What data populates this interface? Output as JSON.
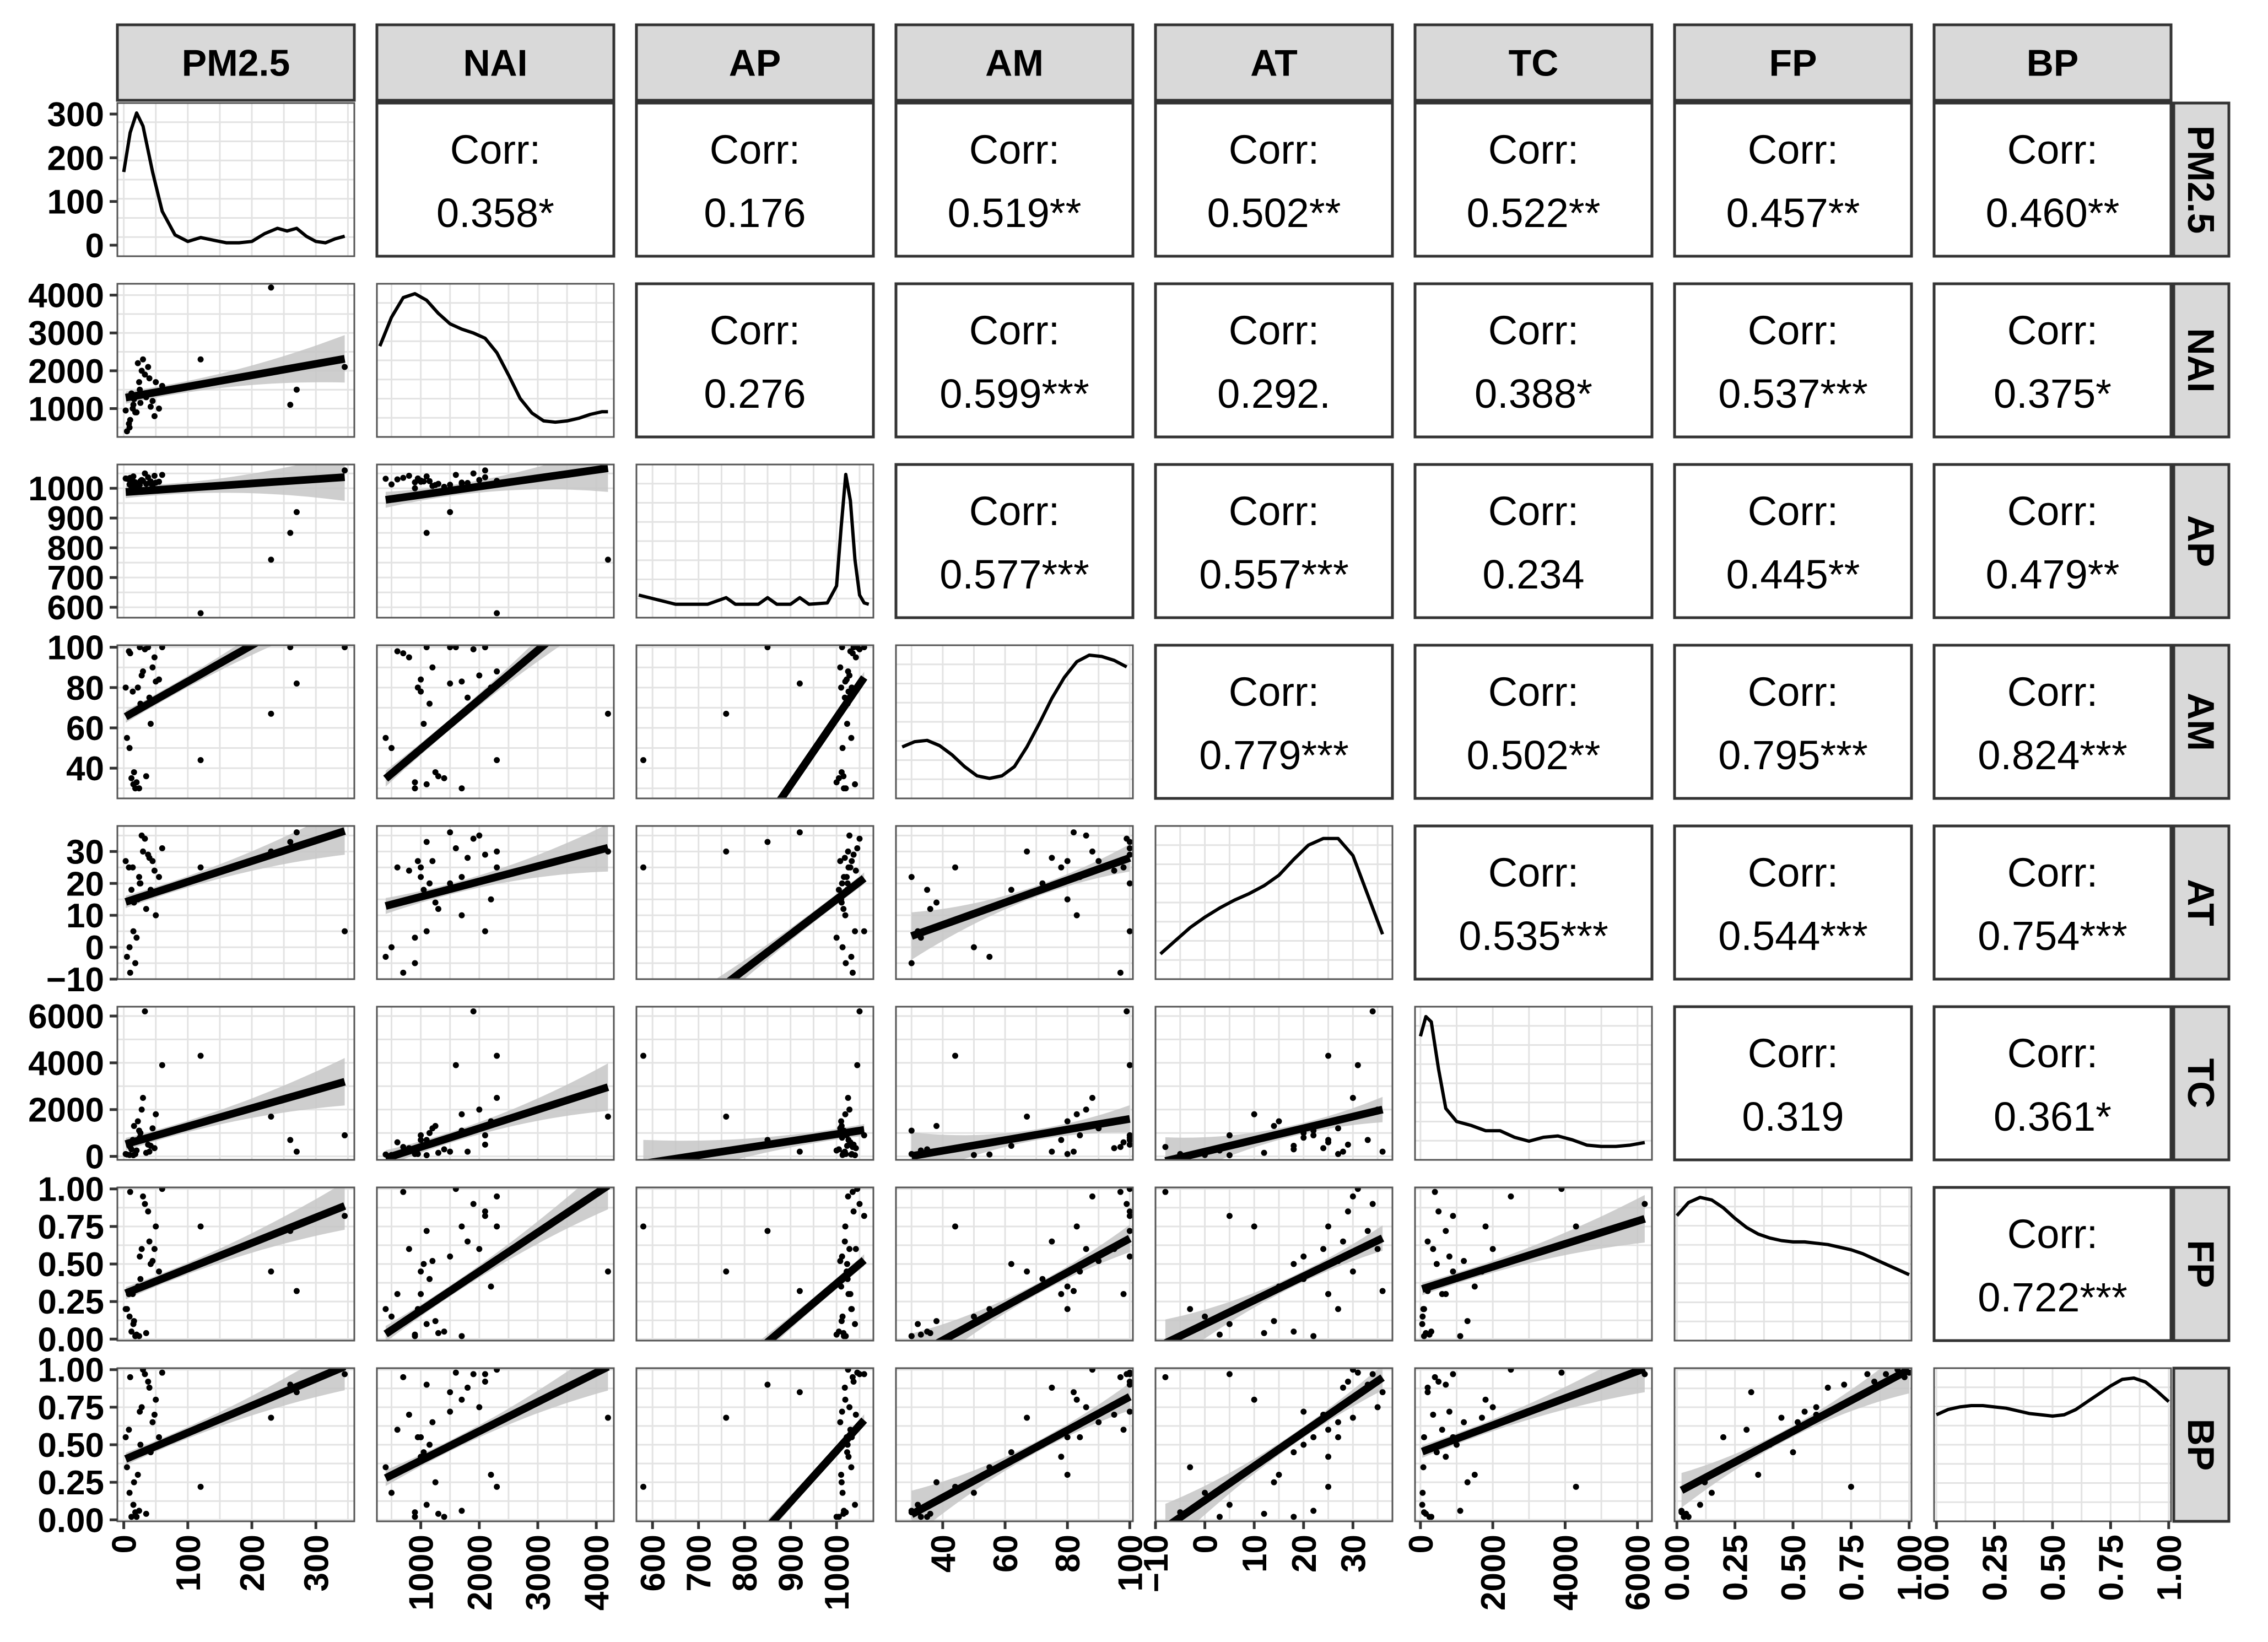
{
  "chart_data": {
    "type": "scatter-matrix",
    "variables": [
      "PM2.5",
      "NAI",
      "AP",
      "AM",
      "AT",
      "TC",
      "FP",
      "BP"
    ],
    "corr_label": "Corr:",
    "correlations": [
      {
        "row": "NAI",
        "col": "PM2.5",
        "text": "0.358*"
      },
      {
        "row": "AP",
        "col": "PM2.5",
        "text": "0.176"
      },
      {
        "row": "AP",
        "col": "NAI",
        "text": "0.276"
      },
      {
        "row": "AM",
        "col": "PM2.5",
        "text": "0.519**"
      },
      {
        "row": "AM",
        "col": "NAI",
        "text": "0.599***"
      },
      {
        "row": "AM",
        "col": "AP",
        "text": "0.577***"
      },
      {
        "row": "AT",
        "col": "PM2.5",
        "text": "0.502**"
      },
      {
        "row": "AT",
        "col": "NAI",
        "text": "0.292."
      },
      {
        "row": "AT",
        "col": "AP",
        "text": "0.557***"
      },
      {
        "row": "AT",
        "col": "AM",
        "text": "0.779***"
      },
      {
        "row": "TC",
        "col": "PM2.5",
        "text": "0.522**"
      },
      {
        "row": "TC",
        "col": "NAI",
        "text": "0.388*"
      },
      {
        "row": "TC",
        "col": "AP",
        "text": "0.234"
      },
      {
        "row": "TC",
        "col": "AM",
        "text": "0.502**"
      },
      {
        "row": "TC",
        "col": "AT",
        "text": "0.535***"
      },
      {
        "row": "FP",
        "col": "PM2.5",
        "text": "0.457**"
      },
      {
        "row": "FP",
        "col": "NAI",
        "text": "0.537***"
      },
      {
        "row": "FP",
        "col": "AP",
        "text": "0.445**"
      },
      {
        "row": "FP",
        "col": "AM",
        "text": "0.795***"
      },
      {
        "row": "FP",
        "col": "AT",
        "text": "0.544***"
      },
      {
        "row": "FP",
        "col": "TC",
        "text": "0.319"
      },
      {
        "row": "BP",
        "col": "PM2.5",
        "text": "0.460**"
      },
      {
        "row": "BP",
        "col": "NAI",
        "text": "0.375*"
      },
      {
        "row": "BP",
        "col": "AP",
        "text": "0.479**"
      },
      {
        "row": "BP",
        "col": "AM",
        "text": "0.824***"
      },
      {
        "row": "BP",
        "col": "AT",
        "text": "0.754***"
      },
      {
        "row": "BP",
        "col": "TC",
        "text": "0.361*"
      },
      {
        "row": "BP",
        "col": "FP",
        "text": "0.722***"
      }
    ],
    "axes": {
      "PM2.5": {
        "lim": [
          -10,
          360
        ],
        "ticks": [
          0,
          100,
          200,
          300
        ],
        "tick_labels": [
          "0",
          "100",
          "200",
          "300"
        ]
      },
      "NAI": {
        "lim": [
          250,
          4300
        ],
        "ticks": [
          1000,
          2000,
          3000,
          4000
        ],
        "tick_labels": [
          "1000",
          "2000",
          "3000",
          "4000"
        ]
      },
      "AP": {
        "lim": [
          565,
          1080
        ],
        "ticks": [
          600,
          700,
          800,
          900,
          1000
        ],
        "tick_labels": [
          "600",
          "700",
          "800",
          "900",
          "1000"
        ]
      },
      "AM": {
        "lim": [
          25,
          101
        ],
        "ticks": [
          40,
          60,
          80,
          100
        ],
        "tick_labels": [
          "40",
          "60",
          "80",
          "100"
        ]
      },
      "AT": {
        "lim": [
          -10,
          38
        ],
        "ticks": [
          -10,
          0,
          10,
          20,
          30
        ],
        "tick_labels": [
          "−10",
          "0",
          "10",
          "20",
          "30"
        ]
      },
      "TC": {
        "lim": [
          -150,
          6400
        ],
        "ticks": [
          0,
          2000,
          4000,
          6000
        ],
        "tick_labels": [
          "0",
          "2000",
          "4000",
          "6000"
        ]
      },
      "FP": {
        "lim": [
          -0.01,
          1.01
        ],
        "ticks": [
          0,
          0.25,
          0.5,
          0.75,
          1
        ],
        "tick_labels": [
          "0.00",
          "0.25",
          "0.50",
          "0.75",
          "1.00"
        ]
      },
      "BP": {
        "lim": [
          -0.01,
          1.01
        ],
        "ticks": [
          0,
          0.25,
          0.5,
          0.75,
          1
        ],
        "tick_labels": [
          "0.00",
          "0.25",
          "0.50",
          "0.75",
          "1.00"
        ]
      }
    },
    "diagonal_density": {
      "PM2.5": {
        "x": [
          0,
          10,
          20,
          30,
          45,
          60,
          80,
          100,
          120,
          140,
          160,
          180,
          200,
          220,
          240,
          255,
          270,
          285,
          300,
          315,
          330,
          345
        ],
        "y": [
          0.55,
          0.85,
          1.0,
          0.9,
          0.55,
          0.25,
          0.07,
          0.02,
          0.05,
          0.03,
          0.01,
          0.01,
          0.02,
          0.08,
          0.12,
          0.1,
          0.12,
          0.06,
          0.02,
          0.01,
          0.04,
          0.06
        ]
      },
      "NAI": {
        "x": [
          300,
          500,
          700,
          900,
          1100,
          1300,
          1500,
          1700,
          1900,
          2100,
          2300,
          2500,
          2700,
          2900,
          3100,
          3300,
          3500,
          3700,
          3900,
          4100,
          4200
        ],
        "y": [
          0.6,
          0.82,
          0.97,
          1.0,
          0.95,
          0.85,
          0.77,
          0.73,
          0.7,
          0.66,
          0.55,
          0.38,
          0.2,
          0.09,
          0.03,
          0.02,
          0.03,
          0.05,
          0.08,
          0.1,
          0.1
        ]
      },
      "AP": {
        "x": [
          570,
          650,
          720,
          760,
          780,
          800,
          830,
          850,
          870,
          900,
          920,
          940,
          980,
          1000,
          1010,
          1020,
          1030,
          1040,
          1050,
          1060,
          1070
        ],
        "y": [
          0.08,
          0.01,
          0.01,
          0.06,
          0.01,
          0.01,
          0.01,
          0.06,
          0.01,
          0.01,
          0.06,
          0.01,
          0.02,
          0.15,
          0.6,
          1.0,
          0.8,
          0.35,
          0.08,
          0.02,
          0.01
        ]
      },
      "AM": {
        "x": [
          27,
          31,
          35,
          39,
          43,
          47,
          51,
          55,
          59,
          63,
          67,
          71,
          75,
          79,
          83,
          87,
          91,
          95,
          99
        ],
        "y": [
          0.3,
          0.34,
          0.35,
          0.31,
          0.24,
          0.15,
          0.08,
          0.06,
          0.08,
          0.15,
          0.3,
          0.48,
          0.67,
          0.83,
          0.95,
          1.0,
          0.99,
          0.96,
          0.91
        ]
      },
      "AT": {
        "x": [
          -9,
          -6,
          -3,
          0,
          3,
          6,
          9,
          12,
          15,
          18,
          21,
          24,
          27,
          30,
          33,
          36
        ],
        "y": [
          0.1,
          0.2,
          0.3,
          0.38,
          0.45,
          0.51,
          0.56,
          0.62,
          0.7,
          0.82,
          0.93,
          0.98,
          0.98,
          0.85,
          0.55,
          0.25
        ]
      },
      "TC": {
        "x": [
          0,
          150,
          300,
          500,
          700,
          1000,
          1400,
          1800,
          2200,
          2600,
          3000,
          3400,
          3800,
          4200,
          4600,
          5000,
          5400,
          5800,
          6200
        ],
        "y": [
          0.85,
          1.0,
          0.96,
          0.6,
          0.3,
          0.2,
          0.17,
          0.13,
          0.13,
          0.08,
          0.05,
          0.08,
          0.09,
          0.06,
          0.02,
          0.01,
          0.01,
          0.02,
          0.04
        ]
      },
      "FP": {
        "x": [
          0,
          0.05,
          0.1,
          0.15,
          0.2,
          0.25,
          0.3,
          0.35,
          0.4,
          0.45,
          0.5,
          0.55,
          0.6,
          0.65,
          0.7,
          0.75,
          0.8,
          0.85,
          0.9,
          0.95,
          1.0
        ],
        "y": [
          0.86,
          0.96,
          1.0,
          0.98,
          0.92,
          0.84,
          0.77,
          0.72,
          0.69,
          0.67,
          0.66,
          0.66,
          0.65,
          0.64,
          0.62,
          0.6,
          0.57,
          0.53,
          0.49,
          0.45,
          0.41
        ]
      },
      "BP": {
        "x": [
          0,
          0.05,
          0.1,
          0.15,
          0.2,
          0.25,
          0.3,
          0.35,
          0.4,
          0.45,
          0.5,
          0.55,
          0.6,
          0.65,
          0.7,
          0.75,
          0.8,
          0.85,
          0.9,
          0.95,
          1.0
        ],
        "y": [
          0.72,
          0.76,
          0.78,
          0.79,
          0.79,
          0.78,
          0.77,
          0.75,
          0.73,
          0.72,
          0.71,
          0.72,
          0.76,
          0.82,
          0.88,
          0.94,
          0.99,
          1.0,
          0.97,
          0.9,
          0.82
        ]
      }
    },
    "observations": {
      "PM2.5": [
        12,
        18,
        25,
        8,
        30,
        40,
        15,
        22,
        55,
        10,
        35,
        28,
        45,
        5,
        60,
        20,
        14,
        50,
        38,
        9,
        26,
        33,
        48,
        16,
        42,
        120,
        230,
        260,
        270,
        345,
        3,
        24
      ],
      "NAI": [
        1400,
        900,
        1500,
        600,
        2300,
        1800,
        1100,
        2200,
        1000,
        700,
        1300,
        2000,
        1200,
        400,
        1600,
        900,
        1000,
        1700,
        2100,
        500,
        1150,
        1900,
        800,
        1250,
        1050,
        2300,
        4200,
        1100,
        1500,
        2100,
        950,
        1700
      ],
      "AP": [
        1005,
        1020,
        1012,
        1030,
        1025,
        1018,
        1040,
        1010,
        1022,
        1035,
        1015,
        1028,
        1008,
        1032,
        1045,
        1000,
        1026,
        1019,
        1037,
        1013,
        1024,
        1050,
        1042,
        1011,
        1023,
        580,
        760,
        850,
        920,
        1060,
        1033,
        1016
      ],
      "AM": [
        35,
        30,
        100,
        98,
        88,
        75,
        32,
        80,
        84,
        97,
        36,
        86,
        90,
        55,
        100,
        33,
        78,
        83,
        100,
        50,
        72,
        99,
        95,
        38,
        62,
        44,
        67,
        100,
        82,
        100,
        80,
        30
      ],
      "AT": [
        18,
        -5,
        20,
        25,
        30,
        28,
        5,
        15,
        22,
        -8,
        12,
        35,
        27,
        -3,
        31,
        3,
        25,
        10,
        29,
        0,
        20,
        34,
        24,
        14,
        18,
        25,
        30,
        33,
        36,
        5,
        27,
        22
      ],
      "TC": [
        300,
        100,
        800,
        600,
        2500,
        200,
        50,
        1500,
        900,
        400,
        150,
        2000,
        1200,
        80,
        3900,
        250,
        700,
        1800,
        500,
        60,
        1000,
        6200,
        350,
        1300,
        450,
        4300,
        1700,
        700,
        200,
        900,
        100,
        1100
      ],
      "FP": [
        0.05,
        0.02,
        0.55,
        0.3,
        0.95,
        0.65,
        0.1,
        0.35,
        0.45,
        0.98,
        0.04,
        0.6,
        0.52,
        0.2,
        1.0,
        0.03,
        0.3,
        0.75,
        0.85,
        0.15,
        0.4,
        0.9,
        0.6,
        0.12,
        0.5,
        0.75,
        0.45,
        0.72,
        0.32,
        0.82,
        0.2,
        0.02
      ],
      "BP": [
        0.02,
        0.05,
        0.72,
        0.6,
        1.0,
        0.88,
        0.1,
        0.3,
        0.55,
        0.95,
        0.04,
        0.75,
        0.65,
        0.35,
        0.98,
        0.02,
        0.42,
        0.8,
        0.92,
        0.18,
        0.5,
        0.97,
        0.7,
        0.25,
        0.45,
        0.22,
        0.68,
        0.9,
        0.85,
        0.97,
        0.55,
        0.06
      ]
    },
    "fits": {
      "NAI|PM2.5": [
        1281,
        3.0
      ],
      "AP|PM2.5": [
        987,
        0.146
      ],
      "AP|NAI": [
        950,
        0.028
      ],
      "AM|PM2.5": [
        65,
        0.18
      ],
      "AM|NAI": [
        25,
        0.0245
      ],
      "AM|AP": [
        -268,
        0.333
      ],
      "AT|PM2.5": [
        14,
        0.065
      ],
      "AT|NAI": [
        11,
        0.0048
      ],
      "AT|AP": [
        -95,
        0.11
      ],
      "AT|AM": [
        -7,
        0.35
      ],
      "TC|PM2.5": [
        500,
        7.8
      ],
      "TC|NAI": [
        -400,
        0.8
      ],
      "TC|AP": [
        -2050,
        3.0
      ],
      "TC|AM": [
        -667,
        22.7
      ],
      "TC|AT": [
        200,
        50
      ],
      "FP|PM2.5": [
        0.3,
        0.0017
      ],
      "FP|NAI": [
        -0.07,
        0.00026
      ],
      "FP|AP": [
        -2.23,
        0.0026
      ],
      "FP|AM": [
        -0.46,
        0.0113
      ],
      "FP|AT": [
        0.1,
        0.0159
      ],
      "FP|TC": [
        0.33,
        7.6e-05
      ],
      "BP|PM2.5": [
        0.4,
        0.0018
      ],
      "BP|NAI": [
        0.2,
        0.000195
      ],
      "BP|AP": [
        -2.94,
        0.0034
      ],
      "BP|AM": [
        -0.3,
        0.0112
      ],
      "BP|AT": [
        0.13,
        0.0227
      ],
      "BP|TC": [
        0.45,
        9e-05
      ],
      "BP|FP": [
        0.18,
        0.82
      ]
    },
    "grid": true,
    "smooth_method": "lm with confidence band",
    "colors": {
      "strip_fill": "#d9d9d9",
      "panel_border": "#333333",
      "grid": "#e3e3e3",
      "band": "#c6c6c6",
      "line": "#000000",
      "point": "#000000",
      "text": "#000000"
    }
  }
}
